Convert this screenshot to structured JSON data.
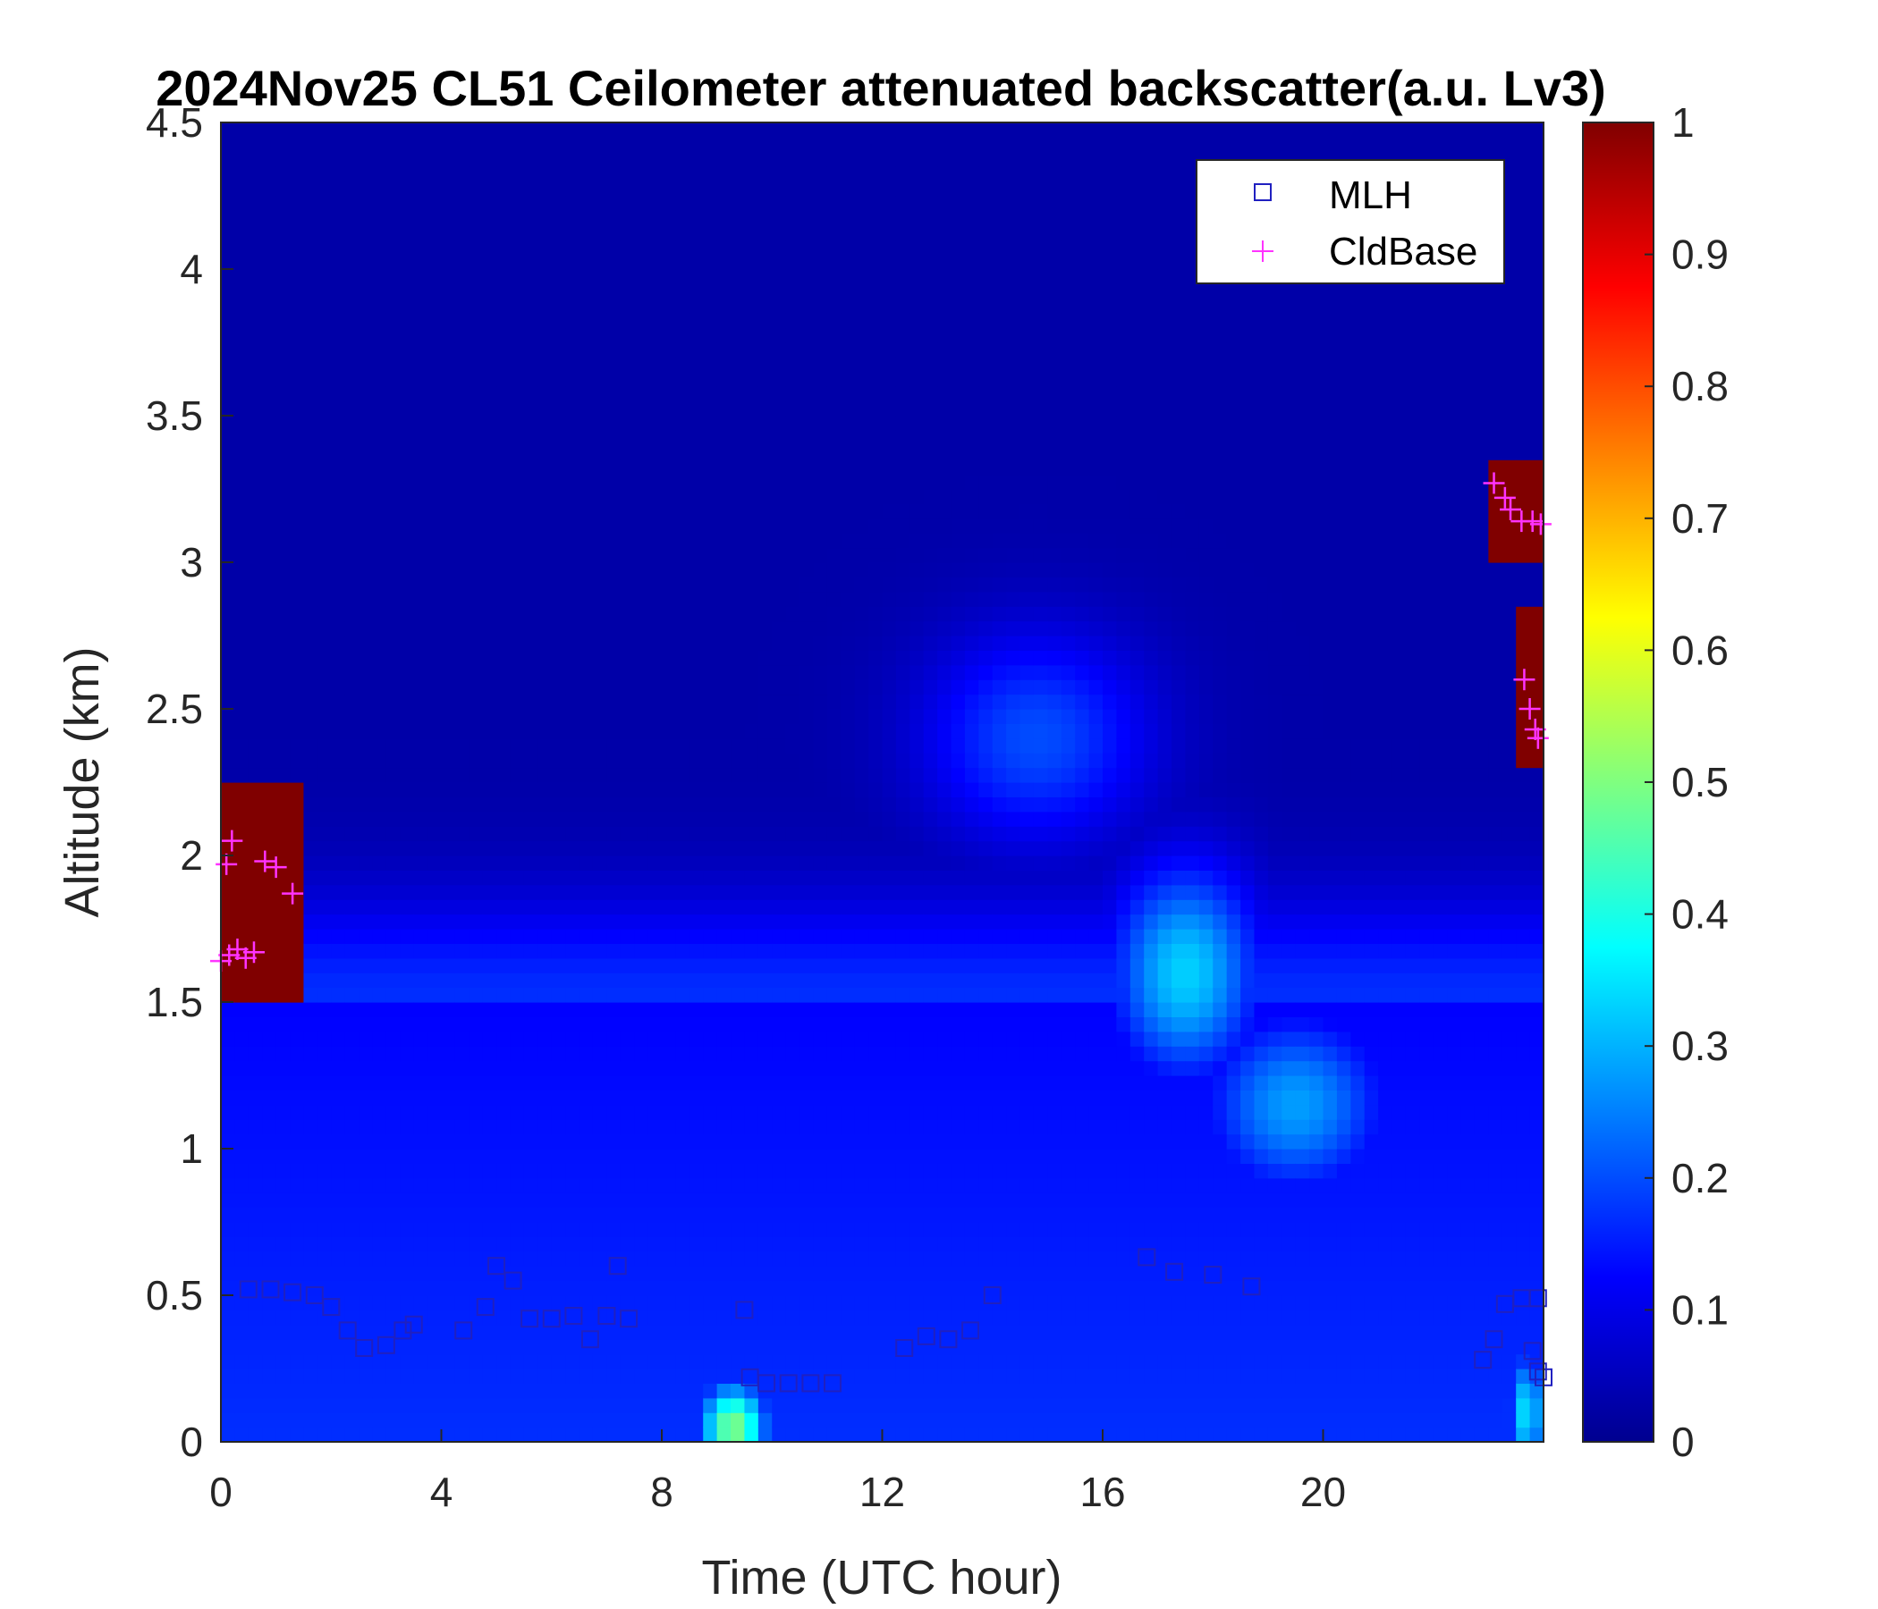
{
  "chart_data": {
    "type": "heatmap",
    "title": "2024Nov25 CL51 Ceilometer attenuated backscatter(a.u. Lv3)",
    "xlabel": "Time (UTC hour)",
    "ylabel": "Altitude (km)",
    "xlim": [
      0,
      24
    ],
    "ylim": [
      0,
      4.5
    ],
    "x_ticks": [
      "0",
      "4",
      "8",
      "12",
      "16",
      "20"
    ],
    "y_ticks": [
      "0",
      "0.5",
      "1",
      "1.5",
      "2",
      "2.5",
      "3",
      "3.5",
      "4",
      "4.5"
    ],
    "colorbar": {
      "colormap": "jet",
      "range": [
        0,
        1
      ],
      "ticks": [
        "0",
        "0.1",
        "0.2",
        "0.3",
        "0.4",
        "0.5",
        "0.6",
        "0.7",
        "0.8",
        "0.9",
        "1"
      ]
    },
    "legend": {
      "placement": "top-right",
      "entries": [
        {
          "label": "MLH",
          "marker": "square",
          "color": "#2020c0"
        },
        {
          "label": "CldBase",
          "marker": "plus",
          "color": "#ff33ff"
        }
      ]
    },
    "background_level": 0.04,
    "features": [
      {
        "name": "surface layer",
        "t0": 0,
        "t1": 24,
        "z0": 0,
        "z1": 1.5,
        "value": 0.17
      },
      {
        "name": "aerosol plume",
        "t": 17.5,
        "z": 1.6,
        "dt": 1.3,
        "dz": 0.35,
        "value": 0.33
      },
      {
        "name": "aerosol plume upper",
        "t": 14.8,
        "z": 2.4,
        "dt": 2.0,
        "dz": 0.35,
        "value": 0.2
      },
      {
        "name": "aerosol plume lower",
        "t": 19.5,
        "z": 1.15,
        "dt": 1.6,
        "dz": 0.3,
        "value": 0.28
      },
      {
        "name": "near-surface maximum",
        "t": 9.3,
        "z": 0.05,
        "dt": 0.6,
        "dz": 0.15,
        "value": 0.5
      },
      {
        "name": "near-surface maximum late",
        "t": 23.7,
        "z": 0.1,
        "dt": 0.35,
        "dz": 0.2,
        "value": 0.35
      },
      {
        "name": "cloud early",
        "t0": 0,
        "t1": 1.6,
        "z0": 1.5,
        "z1": 2.25,
        "value": 1.0
      },
      {
        "name": "cloud late upper",
        "t0": 23.05,
        "t1": 24,
        "z0": 3.0,
        "z1": 3.35,
        "value": 1.0
      },
      {
        "name": "cloud late lower",
        "t0": 23.6,
        "t1": 24,
        "z0": 2.3,
        "z1": 2.85,
        "value": 1.0
      }
    ],
    "mlh": [
      {
        "t": 0.5,
        "z": 0.52
      },
      {
        "t": 0.9,
        "z": 0.52
      },
      {
        "t": 1.3,
        "z": 0.51
      },
      {
        "t": 1.7,
        "z": 0.5
      },
      {
        "t": 2.0,
        "z": 0.46
      },
      {
        "t": 2.3,
        "z": 0.38
      },
      {
        "t": 2.6,
        "z": 0.32
      },
      {
        "t": 3.0,
        "z": 0.33
      },
      {
        "t": 3.3,
        "z": 0.38
      },
      {
        "t": 3.5,
        "z": 0.4
      },
      {
        "t": 4.4,
        "z": 0.38
      },
      {
        "t": 4.8,
        "z": 0.46
      },
      {
        "t": 5.0,
        "z": 0.6
      },
      {
        "t": 5.3,
        "z": 0.55
      },
      {
        "t": 5.6,
        "z": 0.42
      },
      {
        "t": 6.0,
        "z": 0.42
      },
      {
        "t": 6.4,
        "z": 0.43
      },
      {
        "t": 6.7,
        "z": 0.35
      },
      {
        "t": 7.0,
        "z": 0.43
      },
      {
        "t": 7.2,
        "z": 0.6
      },
      {
        "t": 7.4,
        "z": 0.42
      },
      {
        "t": 9.5,
        "z": 0.45
      },
      {
        "t": 9.6,
        "z": 0.22
      },
      {
        "t": 9.9,
        "z": 0.2
      },
      {
        "t": 10.3,
        "z": 0.2
      },
      {
        "t": 10.7,
        "z": 0.2
      },
      {
        "t": 11.1,
        "z": 0.2
      },
      {
        "t": 12.4,
        "z": 0.32
      },
      {
        "t": 12.8,
        "z": 0.36
      },
      {
        "t": 13.2,
        "z": 0.35
      },
      {
        "t": 13.6,
        "z": 0.38
      },
      {
        "t": 14.0,
        "z": 0.5
      },
      {
        "t": 16.8,
        "z": 0.63
      },
      {
        "t": 17.3,
        "z": 0.58
      },
      {
        "t": 18.0,
        "z": 0.57
      },
      {
        "t": 18.7,
        "z": 0.53
      },
      {
        "t": 22.9,
        "z": 0.28
      },
      {
        "t": 23.1,
        "z": 0.35
      },
      {
        "t": 23.3,
        "z": 0.47
      },
      {
        "t": 23.6,
        "z": 0.49
      },
      {
        "t": 23.9,
        "z": 0.49
      },
      {
        "t": 23.8,
        "z": 0.31
      },
      {
        "t": 23.9,
        "z": 0.24
      },
      {
        "t": 24.0,
        "z": 0.22
      }
    ],
    "cloud_base": [
      {
        "t": 0.0,
        "z": 1.64
      },
      {
        "t": 0.15,
        "z": 1.66
      },
      {
        "t": 0.3,
        "z": 1.68
      },
      {
        "t": 0.45,
        "z": 1.65
      },
      {
        "t": 0.6,
        "z": 1.67
      },
      {
        "t": 0.2,
        "z": 2.05
      },
      {
        "t": 0.1,
        "z": 1.97
      },
      {
        "t": 0.8,
        "z": 1.98
      },
      {
        "t": 1.0,
        "z": 1.96
      },
      {
        "t": 1.3,
        "z": 1.87
      },
      {
        "t": 23.1,
        "z": 3.27
      },
      {
        "t": 23.3,
        "z": 3.22
      },
      {
        "t": 23.4,
        "z": 3.18
      },
      {
        "t": 23.6,
        "z": 3.14
      },
      {
        "t": 23.8,
        "z": 3.14
      },
      {
        "t": 23.95,
        "z": 3.13
      },
      {
        "t": 23.65,
        "z": 2.6
      },
      {
        "t": 23.75,
        "z": 2.5
      },
      {
        "t": 23.85,
        "z": 2.43
      },
      {
        "t": 23.9,
        "z": 2.4
      }
    ]
  }
}
